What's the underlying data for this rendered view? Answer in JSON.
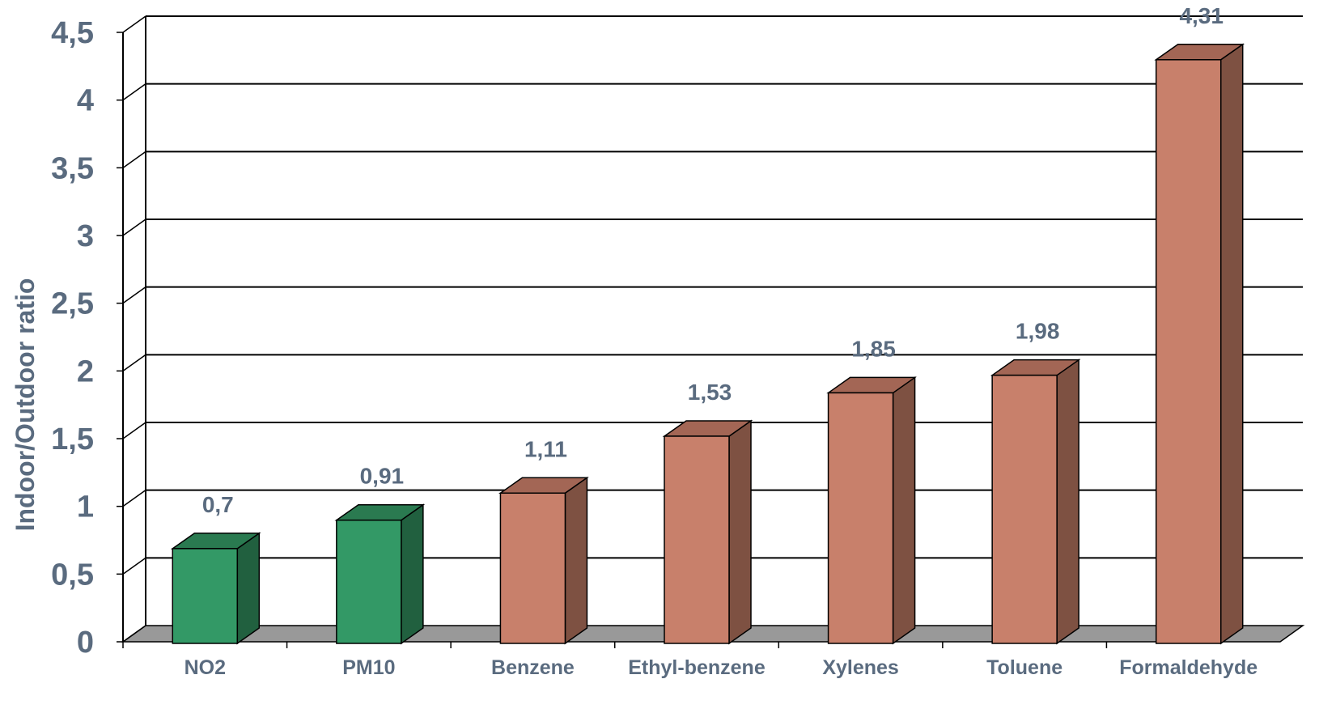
{
  "chart_data": {
    "type": "bar",
    "title": "",
    "xlabel": "",
    "ylabel": "Indoor/Outdoor ratio",
    "ylim": [
      0,
      4.5
    ],
    "yticks": [
      "0",
      "0,5",
      "1",
      "1,5",
      "2",
      "2,5",
      "3",
      "3,5",
      "4",
      "4,5"
    ],
    "categories": [
      "NO2",
      "PM10",
      "Benzene",
      "Ethyl-benzene",
      "Xylenes",
      "Toluene",
      "Formaldehyde"
    ],
    "values": [
      0.7,
      0.91,
      1.11,
      1.53,
      1.85,
      1.98,
      4.31
    ],
    "value_labels": [
      "0,7",
      "0,91",
      "1,11",
      "1,53",
      "1,85",
      "1,98",
      "4,31"
    ],
    "grid": true,
    "style": "3d-column",
    "colors": {
      "green_front": "#339966",
      "green_top": "#2a7a50",
      "green_side": "#21603f",
      "orange_front": "#c8806b",
      "orange_top": "#a36655",
      "orange_side": "#7e5142",
      "floor": "#999999",
      "text": "#5a6b7f"
    },
    "bar_color_groups": [
      "green",
      "green",
      "orange",
      "orange",
      "orange",
      "orange",
      "orange"
    ]
  }
}
